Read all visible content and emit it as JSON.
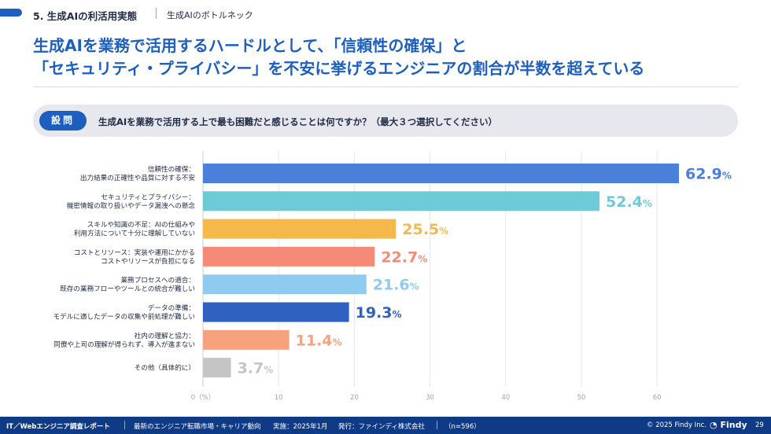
{
  "section": {
    "label": "5. 生成AIの利活用実態",
    "sub": "生成AIのボトルネック"
  },
  "headline": {
    "line1": "生成AIを業務で活用するハードルとして、「信頼性の確保」と",
    "line2": "「セキュリティ・プライバシー」を不安に挙げるエンジニアの割合が半数を超えている"
  },
  "question": {
    "pill": "設問",
    "text": "生成AIを業務で活用する上で最も困難だと感じることは何ですか？（最大３つ選択してください）"
  },
  "chart_data": {
    "type": "bar",
    "orientation": "horizontal",
    "categories": [
      [
        "信頼性の確保：",
        "出力結果の正確性や品質に対する不安"
      ],
      [
        "セキュリティとプライバシー：",
        "機密情報の取り扱いやデータ漏洩への懸念"
      ],
      [
        "スキルや知識の不足：AIの仕組みや",
        "利用方法について十分に理解していない"
      ],
      [
        "コストとリソース：実装や運用にかかる",
        "コストやリソースが負担になる"
      ],
      [
        "業務プロセスへの適合：",
        "既存の業務フローやツールとの統合が難しい"
      ],
      [
        "データの準備：",
        "モデルに適したデータの収集や前処理が難しい"
      ],
      [
        "社内の理解と協力：",
        "同僚や上司の理解が得られず、導入が進まない"
      ],
      [
        "その他（具体的に）"
      ]
    ],
    "values": [
      62.9,
      52.4,
      25.5,
      22.7,
      21.6,
      19.3,
      11.4,
      3.7
    ],
    "value_labels": [
      "62.9",
      "52.4",
      "25.5",
      "22.7",
      "21.6",
      "19.3",
      "11.4",
      "3.7"
    ],
    "unit_suffix": "%",
    "colors": [
      "#4a80d9",
      "#6dcbd8",
      "#f5b94b",
      "#f58a78",
      "#8ecbef",
      "#2f62c0",
      "#f6a27e",
      "#c5c5c5"
    ],
    "xlim": [
      0,
      65
    ],
    "xticks": [
      "0（%）",
      "10",
      "20",
      "30",
      "40",
      "50",
      "60"
    ],
    "xtick_values": [
      0,
      10,
      20,
      30,
      40,
      50,
      60
    ],
    "grid": true
  },
  "footer": {
    "report": "IT／Webエンジニア調査レポート",
    "subtitle": "最新のエンジニア転職市場・キャリア動向",
    "conducted": "実施：2025年1月",
    "publisher": "発行：ファインディ株式会社",
    "sample": "（n=596）",
    "copyright": "© 2025 Findy Inc.",
    "brand": "Findy",
    "page": "29"
  }
}
